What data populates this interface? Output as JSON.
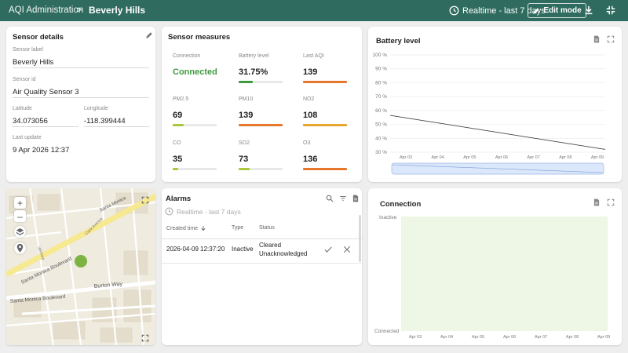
{
  "topbar": {
    "root": "AQI Administration",
    "separator": ">",
    "current": "Beverly Hills",
    "realtime": "Realtime - last 7 days",
    "edit_mode": "Edit mode"
  },
  "sensor_details": {
    "title": "Sensor details",
    "label_caption": "Sensor label",
    "label_value": "Beverly Hills",
    "id_caption": "Sensor id",
    "id_value": "Air Quality Sensor 3",
    "lat_caption": "Latitude",
    "lat_value": "34.073056",
    "lon_caption": "Longitude",
    "lon_value": "-118.399444",
    "update_caption": "Last update",
    "update_value": "9 Apr 2026 12:37"
  },
  "sensor_measures": {
    "title": "Sensor measures",
    "items": [
      {
        "label": "Connection",
        "value": "Connected",
        "fill": null,
        "color": "#3f9a3f"
      },
      {
        "label": "Battery level",
        "value": "31.75%",
        "fill": 0.32,
        "color": "#3f9a3f"
      },
      {
        "label": "Last AQI",
        "value": "139",
        "fill": 1.0,
        "color": "#e8772e"
      },
      {
        "label": "PM2.5",
        "value": "69",
        "fill": 0.25,
        "color": "#a9c93a"
      },
      {
        "label": "PM10",
        "value": "139",
        "fill": 1.0,
        "color": "#e8772e"
      },
      {
        "label": "NO2",
        "value": "108",
        "fill": 1.0,
        "color": "#e8a62e"
      },
      {
        "label": "CO",
        "value": "35",
        "fill": 0.13,
        "color": "#a9c93a"
      },
      {
        "label": "SO2",
        "value": "73",
        "fill": 0.25,
        "color": "#a9c93a"
      },
      {
        "label": "O3",
        "value": "136",
        "fill": 1.0,
        "color": "#e8772e"
      }
    ]
  },
  "battery_chart": {
    "title": "Battery level",
    "chart_data": {
      "type": "line",
      "yticks": [
        "100 %",
        "90 %",
        "80 %",
        "70 %",
        "60 %",
        "50 %",
        "40 %",
        "30 %"
      ],
      "ylim": [
        30,
        100
      ],
      "xticks": [
        "Apr 03",
        "Apr 04",
        "Apr 05",
        "Apr 06",
        "Apr 07",
        "Apr 08",
        "Apr 09"
      ],
      "series": [
        {
          "x": [
            "Apr 03",
            "Apr 09"
          ],
          "values": [
            56.5,
            32
          ]
        }
      ]
    }
  },
  "alarms": {
    "title": "Alarms",
    "subtitle": "Realtime - last 7 days",
    "columns": [
      "Created time",
      "Type",
      "Status"
    ],
    "rows": [
      {
        "created": "2026-04-09 12:37:20",
        "type": "Inactive",
        "status1": "Cleared",
        "status2": "Unacknowledged"
      }
    ]
  },
  "map": {
    "streets": [
      "Santa Monica Boulevard",
      "Santa Monica Boulevard",
      "Burton Way",
      "Santa Monica",
      "Clark Avenue",
      "Wilshire"
    ]
  },
  "connection_chart": {
    "title": "Connection",
    "ytop": "Inactive",
    "ybottom": "Connected",
    "xticks": [
      "Apr 03",
      "Apr 04",
      "Apr 05",
      "Apr 06",
      "Apr 07",
      "Apr 08",
      "Apr 09"
    ]
  }
}
